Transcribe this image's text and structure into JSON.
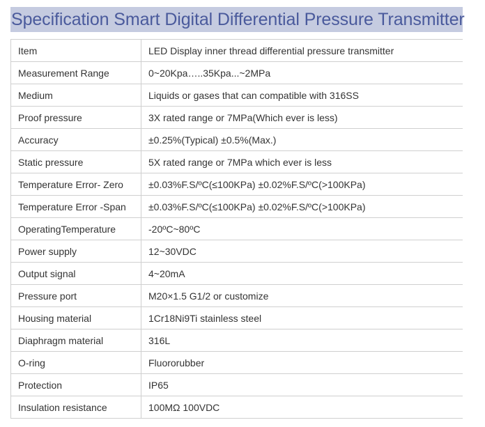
{
  "title": "Specification Smart Digital Differential Pressure Transmitter",
  "colors": {
    "title_background": "#c5cbe0",
    "title_text": "#4a5a9c",
    "body_text": "#333333",
    "border": "#cfcfcf"
  },
  "spec_table": {
    "rows": [
      {
        "label": "Item",
        "value": "LED Display inner thread differential pressure transmitter"
      },
      {
        "label": "Measurement Range",
        "value": "0~20Kpa…..35Kpa...~2MPa"
      },
      {
        "label": "Medium",
        "value": "Liquids or gases that can compatible with 316SS"
      },
      {
        "label": "Proof pressure",
        "value": "3X rated range or 7MPa(Which ever is less)"
      },
      {
        "label": "Accuracy",
        "value": "±0.25%(Typical) ±0.5%(Max.)"
      },
      {
        "label": "Static pressure",
        "value": "5X rated range or 7MPa which ever is less"
      },
      {
        "label": "Temperature Error- Zero",
        "value": "±0.03%F.S/ºC(≤100KPa) ±0.02%F.S/ºC(>100KPa)"
      },
      {
        "label": "Temperature Error -Span",
        "value": "±0.03%F.S/ºC(≤100KPa) ±0.02%F.S/ºC(>100KPa)"
      },
      {
        "label": "OperatingTemperature",
        "value": "-20ºC~80ºC"
      },
      {
        "label": "Power supply",
        "value": "12~30VDC"
      },
      {
        "label": "Output signal",
        "value": "4~20mA"
      },
      {
        "label": "Pressure port",
        "value": "M20×1.5 G1/2 or customize"
      },
      {
        "label": "Housing material",
        "value": "1Cr18Ni9Ti stainless steel"
      },
      {
        "label": "Diaphragm material",
        "value": "316L"
      },
      {
        "label": "O-ring",
        "value": "Fluororubber"
      },
      {
        "label": "Protection",
        "value": "IP65"
      },
      {
        "label": "Insulation resistance",
        "value": "100MΩ 100VDC"
      }
    ]
  }
}
